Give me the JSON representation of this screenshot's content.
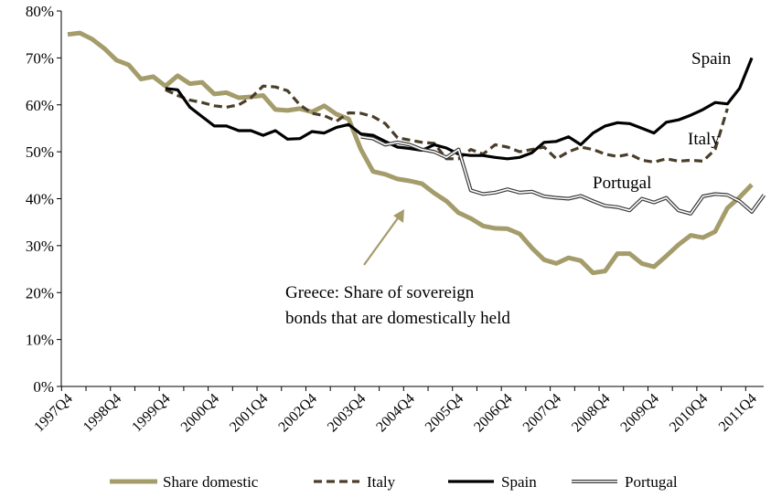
{
  "chart_data": {
    "type": "line",
    "title": "",
    "xlabel": "",
    "ylabel": "",
    "ylim": [
      0,
      80
    ],
    "y_ticks": [
      "0%",
      "10%",
      "20%",
      "30%",
      "40%",
      "50%",
      "60%",
      "70%",
      "80%"
    ],
    "x_tick_labels": [
      "1997Q4",
      "1998Q4",
      "1999Q4",
      "2000Q4",
      "2001Q4",
      "2002Q4",
      "2003Q4",
      "2004Q4",
      "2005Q4",
      "2006Q4",
      "2007Q4",
      "2008Q4",
      "2009Q4",
      "2010Q4",
      "2011Q4"
    ],
    "grid": false,
    "legend_position": "bottom",
    "annotations": {
      "spain": "Spain",
      "italy": "Italy",
      "portugal": "Portugal",
      "greece_line1": "Greece: Share of sovereign",
      "greece_line2": "bonds that are domestically held"
    },
    "series": [
      {
        "name": "Share domestic",
        "color": "#a59c6b",
        "style": "thick",
        "start_index": 0,
        "values": [
          75,
          75.3,
          74,
          72,
          69.5,
          68.5,
          65.5,
          66,
          64,
          66.2,
          64.5,
          64.8,
          62.3,
          62.6,
          61.5,
          61.7,
          62,
          59,
          58.8,
          59.2,
          58.5,
          59.8,
          58,
          57,
          50.5,
          45.8,
          45.2,
          44.2,
          43.8,
          43.2,
          41.2,
          39.5,
          37,
          35.8,
          34.2,
          33.7,
          33.6,
          32.5,
          29.5,
          27,
          26.2,
          27.4,
          26.8,
          24.2,
          24.6,
          28.3,
          28.3,
          26.2,
          25.5,
          27.8,
          30.2,
          32.2,
          31.7,
          33,
          38,
          40.3,
          43
        ]
      },
      {
        "name": "Italy",
        "color": "#4a3e2a",
        "style": "dashed",
        "start_index": 8,
        "values": [
          63.2,
          62,
          61,
          60.5,
          59.8,
          59.5,
          60,
          61.5,
          64,
          63.8,
          63,
          60,
          58.2,
          57.7,
          56.5,
          58.3,
          58.2,
          57.5,
          56,
          53,
          52.5,
          52,
          51.8,
          48.5,
          48.5,
          50.5,
          49.5,
          51.5,
          51,
          50,
          50.5,
          51,
          48.5,
          50,
          51,
          50.5,
          49.5,
          49,
          49.5,
          48.2,
          47.8,
          48.5,
          48,
          48.2,
          48,
          50.5,
          59.2
        ]
      },
      {
        "name": "Spain",
        "color": "#000000",
        "style": "solid",
        "start_index": 8,
        "values": [
          63.5,
          63.2,
          59.5,
          57.5,
          55.5,
          55.5,
          54.5,
          54.5,
          53.5,
          54.5,
          52.7,
          52.8,
          54.3,
          54,
          55.2,
          55.8,
          53.8,
          53.5,
          52.2,
          51,
          50.7,
          50.3,
          51.5,
          50.8,
          49.5,
          49.2,
          49.2,
          48.8,
          48.5,
          48.8,
          49.8,
          52,
          52.2,
          53.2,
          51.5,
          54,
          55.5,
          56.2,
          56,
          55,
          54,
          56.3,
          56.8,
          57.8,
          59,
          60.5,
          60.2,
          63.5,
          70
        ]
      },
      {
        "name": "Portugal",
        "color": "#3a3a3a",
        "style": "double",
        "start_index": 24,
        "values": [
          53.2,
          52.8,
          51.5,
          52,
          51.5,
          50.5,
          50,
          48.8,
          50.5,
          41.8,
          41,
          41.3,
          42,
          41.3,
          41.5,
          40.5,
          40.2,
          40,
          40.6,
          39.5,
          38.5,
          38.2,
          37.5,
          40,
          39.2,
          40.2,
          37.5,
          36.8,
          40.5,
          41,
          40.8,
          39.5,
          37.2,
          40.8
        ]
      }
    ]
  }
}
